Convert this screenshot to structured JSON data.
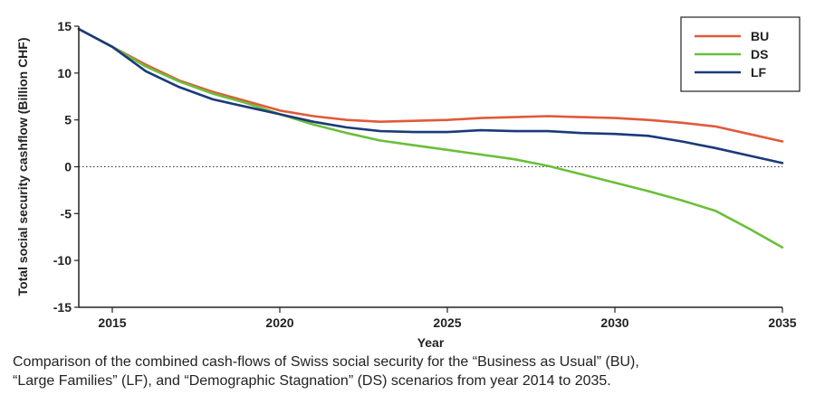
{
  "chart_data": {
    "type": "line",
    "title": "",
    "xlabel": "Year",
    "ylabel": "Total social security cashflow (Billion CHF)",
    "xlim": [
      2014,
      2035
    ],
    "ylim": [
      -15,
      15
    ],
    "x_ticks": [
      2015,
      2020,
      2025,
      2030,
      2035
    ],
    "y_ticks": [
      15,
      10,
      5,
      0,
      -5,
      -10,
      -15
    ],
    "y_tick_labels": [
      "15",
      "10",
      "5",
      "0",
      "-5",
      "-10",
      "-15"
    ],
    "reference_line": 0,
    "grid": false,
    "legend_position": "top-right",
    "x": [
      2014,
      2015,
      2016,
      2017,
      2018,
      2019,
      2020,
      2021,
      2022,
      2023,
      2024,
      2025,
      2026,
      2027,
      2028,
      2029,
      2030,
      2031,
      2032,
      2033,
      2034,
      2035
    ],
    "series": [
      {
        "name": "BU",
        "color": "#e05a3a",
        "values": [
          14.7,
          12.8,
          10.9,
          9.2,
          8.0,
          7.0,
          6.0,
          5.4,
          5.0,
          4.8,
          4.9,
          5.0,
          5.2,
          5.3,
          5.4,
          5.3,
          5.2,
          5.0,
          4.7,
          4.3,
          3.5,
          2.7
        ]
      },
      {
        "name": "DS",
        "color": "#6abf3a",
        "values": [
          14.7,
          12.8,
          10.7,
          9.1,
          7.8,
          6.8,
          5.6,
          4.5,
          3.6,
          2.8,
          2.3,
          1.8,
          1.3,
          0.8,
          0.1,
          -0.8,
          -1.7,
          -2.6,
          -3.6,
          -4.7,
          -6.6,
          -8.6
        ]
      },
      {
        "name": "LF",
        "color": "#1a3a7a",
        "values": [
          14.7,
          12.8,
          10.2,
          8.5,
          7.2,
          6.4,
          5.6,
          4.8,
          4.2,
          3.8,
          3.7,
          3.7,
          3.9,
          3.8,
          3.8,
          3.6,
          3.5,
          3.3,
          2.7,
          2.0,
          1.2,
          0.4
        ]
      }
    ]
  },
  "caption": {
    "line1": "Comparison of the combined cash-flows of Swiss social security for the “Business as Usual” (BU),",
    "line2": "“Large Families” (LF), and “Demographic Stagnation” (DS) scenarios from year 2014 to 2035."
  }
}
